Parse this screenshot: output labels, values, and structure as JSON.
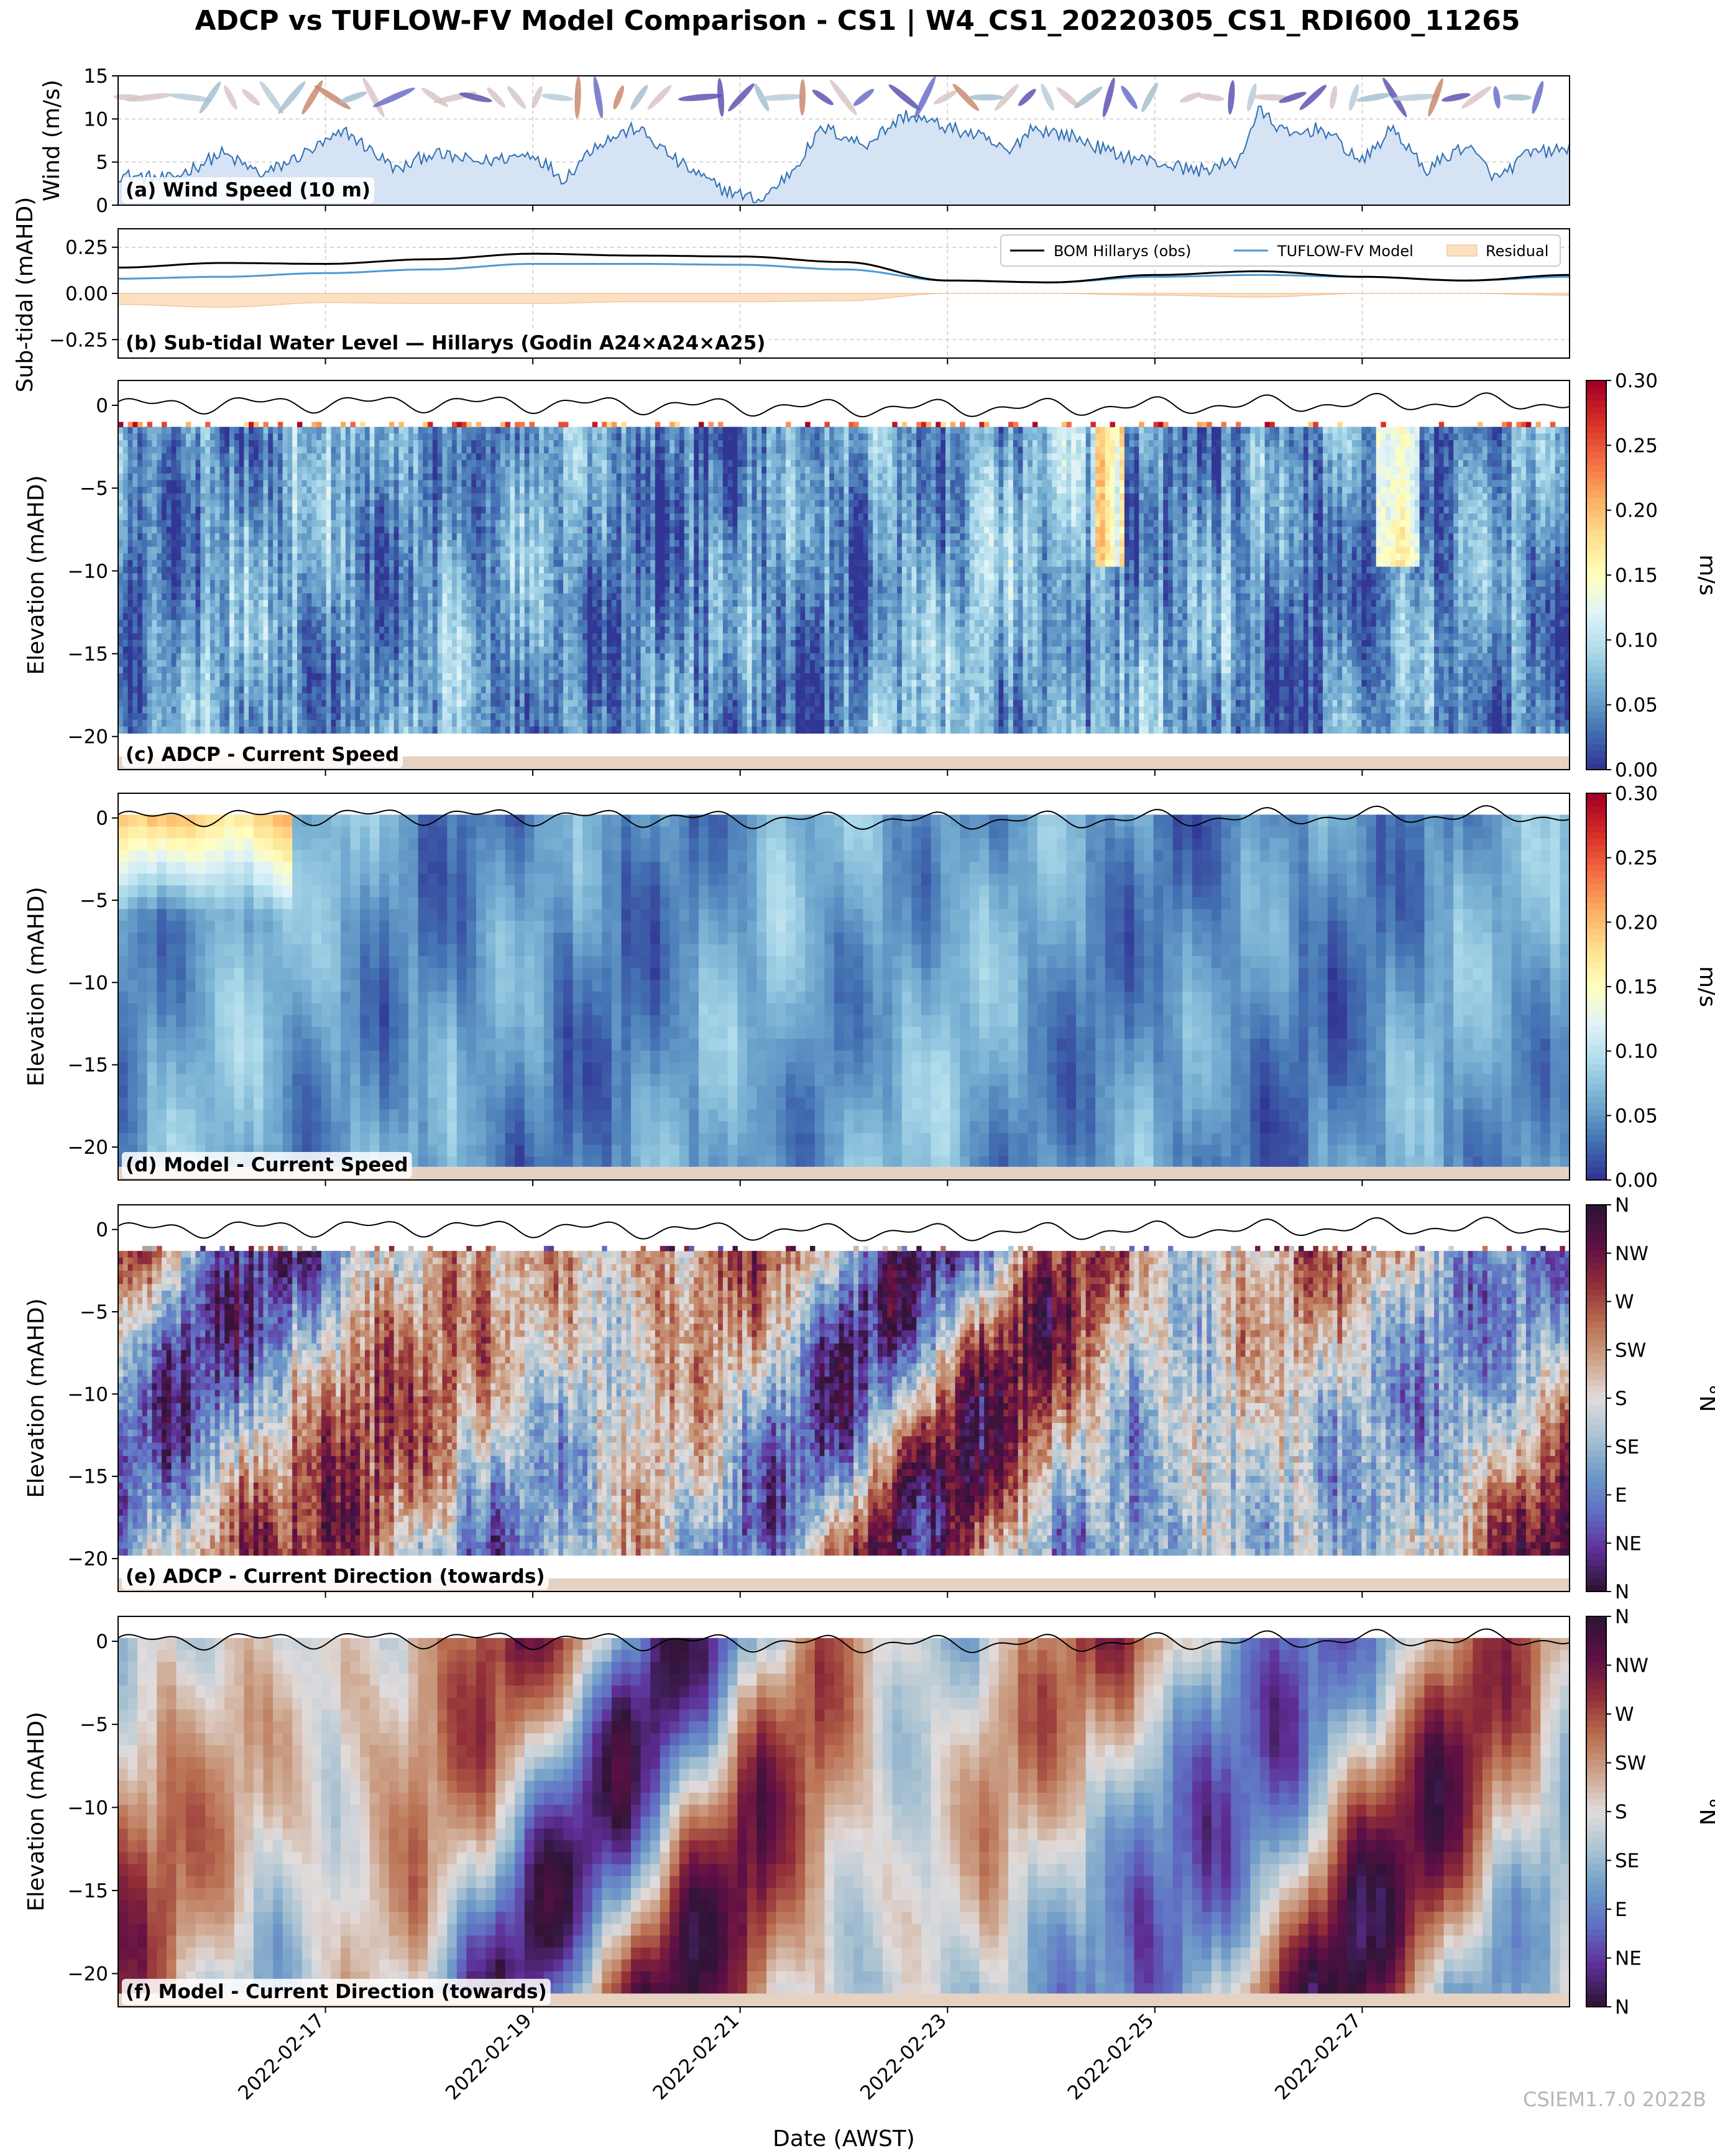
{
  "figure": {
    "title": "ADCP vs TUFLOW-FV Model Comparison - CS1 | W4_CS1_20220305_CS1_RDI600_11265",
    "xlabel": "Date (AWST)",
    "watermark": "CSIEM1.7.0 2022B",
    "colors": {
      "wind_fill": "#d6e3f4",
      "wind_line": "#2f6fb3",
      "obs_line": "#000000",
      "model_line": "#4a9ad8",
      "residual_fill": "#fde0c2",
      "seabed": "#e6d2c3",
      "grid": "#cccccc"
    }
  },
  "chart_data": [
    {
      "panel": "a",
      "type": "area",
      "label": "(a) Wind Speed (10 m)",
      "ylabel": "Wind (m/s)",
      "ylim": [
        0,
        15
      ],
      "yticks": [
        "0",
        "5",
        "10",
        "15"
      ],
      "x_range": [
        "2022-02-15 00:00",
        "2022-02-29 00:00"
      ],
      "x_ticks": [
        "2022-02-17",
        "2022-02-19",
        "2022-02-21",
        "2022-02-23",
        "2022-02-25",
        "2022-02-27"
      ],
      "grid": true,
      "series": [
        {
          "x_days": [
            0,
            0.5,
            1,
            1.4,
            1.8,
            2.2,
            2.7,
            3.0,
            3.5,
            4.0,
            4.3,
            4.6,
            5.0,
            5.4,
            5.8,
            6.2,
            6.5,
            6.8,
            7.2,
            7.6,
            8.0,
            8.3,
            8.6,
            8.8,
            9.2,
            9.6,
            10.0,
            10.4,
            10.8,
            11.0,
            11.3,
            11.6,
            12.0,
            12.3,
            12.6,
            13.0,
            13.3,
            13.6,
            14.0
          ],
          "values": [
            3.5,
            3,
            6,
            3.5,
            6,
            8.5,
            4,
            6,
            5,
            6,
            3,
            7,
            9,
            5,
            2,
            0.5,
            4,
            9,
            7,
            10.5,
            9,
            8,
            6,
            9,
            8,
            6,
            5,
            4,
            5,
            11,
            8,
            9,
            5,
            9,
            4,
            7,
            3,
            6,
            6.5
          ]
        }
      ],
      "arrow_row": {
        "y_value": 12.5,
        "note": "wind direction arrows",
        "colors": [
          "#c98a6e",
          "#6a6fc8",
          "#a7bfcf",
          "#d9c6c6",
          "#5e54b0",
          "#b8cdd9"
        ]
      }
    },
    {
      "panel": "b",
      "type": "line",
      "label": "(b) Sub-tidal Water Level — Hillarys (Godin A24×A24×A25)",
      "ylabel": "Sub-tidal (mAHD)",
      "ylim": [
        -0.35,
        0.35
      ],
      "yticks": [
        "−0.25",
        "0.00",
        "0.25"
      ],
      "legend_position": "top-right",
      "grid": true,
      "series": [
        {
          "name": "BOM Hillarys (obs)",
          "x_days": [
            0,
            1,
            2,
            3,
            4,
            5,
            6,
            7,
            8,
            9,
            10,
            11,
            12,
            13,
            14
          ],
          "values": [
            0.14,
            0.165,
            0.16,
            0.185,
            0.215,
            0.205,
            0.2,
            0.17,
            0.07,
            0.06,
            0.1,
            0.12,
            0.09,
            0.07,
            0.1
          ]
        },
        {
          "name": "TUFLOW-FV Model",
          "x_days": [
            0,
            1,
            2,
            3,
            4,
            5,
            6,
            7,
            8,
            9,
            10,
            11,
            12,
            13,
            14
          ],
          "values": [
            0.08,
            0.09,
            0.11,
            0.13,
            0.16,
            0.16,
            0.155,
            0.13,
            0.07,
            0.06,
            0.09,
            0.1,
            0.09,
            0.07,
            0.09
          ]
        },
        {
          "name": "Residual",
          "x_days": [
            0,
            1,
            2,
            3,
            4,
            5,
            6,
            7,
            8,
            9,
            10,
            11,
            12,
            13,
            14
          ],
          "values": [
            -0.06,
            -0.075,
            -0.05,
            -0.055,
            -0.055,
            -0.045,
            -0.045,
            -0.04,
            0,
            0,
            -0.01,
            -0.02,
            0,
            0,
            -0.01
          ]
        }
      ]
    },
    {
      "panel": "c",
      "type": "heatmap",
      "label": "(c) ADCP - Current Speed",
      "ylabel": "Elevation (mAHD)",
      "ylim": [
        -22,
        1.5
      ],
      "yticks": [
        "0",
        "−5",
        "−10",
        "−15",
        "−20"
      ],
      "colorbar_label": "m/s",
      "colorbar_range": [
        0,
        0.3
      ],
      "colorbar_ticks": [
        "0.00",
        "0.05",
        "0.10",
        "0.15",
        "0.20",
        "0.25",
        "0.30"
      ],
      "data_top": -1.3,
      "data_bottom": -19.8,
      "surface_line": true
    },
    {
      "panel": "d",
      "type": "heatmap",
      "label": "(d) Model - Current Speed",
      "ylabel": "Elevation (mAHD)",
      "ylim": [
        -22,
        1.5
      ],
      "yticks": [
        "0",
        "−5",
        "−10",
        "−15",
        "−20"
      ],
      "colorbar_label": "m/s",
      "colorbar_range": [
        0,
        0.3
      ],
      "colorbar_ticks": [
        "0.00",
        "0.05",
        "0.10",
        "0.15",
        "0.20",
        "0.25",
        "0.30"
      ],
      "data_top": 0.2,
      "data_bottom": -21.3,
      "surface_line": true
    },
    {
      "panel": "e",
      "type": "heatmap",
      "label": "(e) ADCP - Current Direction (towards)",
      "ylabel": "Elevation (mAHD)",
      "ylim": [
        -22,
        1.5
      ],
      "yticks": [
        "0",
        "−5",
        "−10",
        "−15",
        "−20"
      ],
      "colorbar_label": "°N",
      "colorbar_range": [
        0,
        360
      ],
      "colorbar_ticks": [
        "N",
        "NE",
        "E",
        "SE",
        "S",
        "SW",
        "W",
        "NW",
        "N"
      ],
      "data_top": -1.3,
      "data_bottom": -19.8,
      "surface_line": true
    },
    {
      "panel": "f",
      "type": "heatmap",
      "label": "(f) Model - Current Direction (towards)",
      "ylabel": "Elevation (mAHD)",
      "ylim": [
        -22,
        1.5
      ],
      "yticks": [
        "0",
        "−5",
        "−10",
        "−15",
        "−20"
      ],
      "colorbar_label": "°N",
      "colorbar_range": [
        0,
        360
      ],
      "colorbar_ticks": [
        "N",
        "NE",
        "E",
        "SE",
        "S",
        "SW",
        "W",
        "NW",
        "N"
      ],
      "data_top": 0.2,
      "data_bottom": -21.3,
      "surface_line": true
    }
  ]
}
